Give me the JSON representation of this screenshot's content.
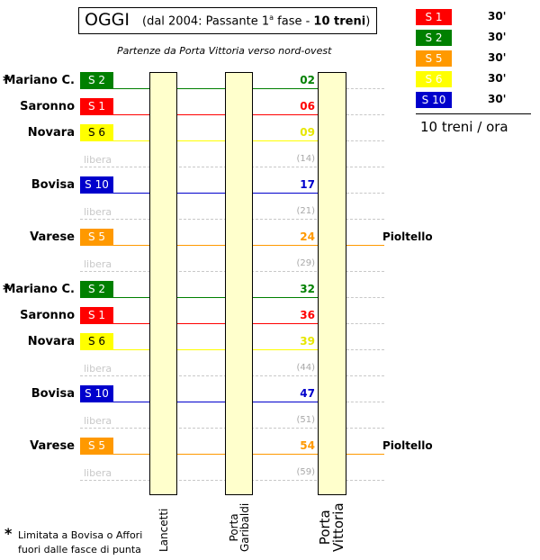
{
  "title": {
    "main": "OGGI",
    "open": "(dal 2004: Passante 1",
    "sup": "a",
    "mid": " fase - ",
    "bold": "10 treni",
    "close": ")"
  },
  "subtitle": "Partenze da Porta Vittoria verso nord-ovest",
  "colors": {
    "S1": "#ff0000",
    "S2": "#008000",
    "S5": "#ff9900",
    "S6": "#ffff00",
    "S10": "#0000cc",
    "free": "#c8c8c8"
  },
  "columns": [
    {
      "line1": "Lancetti",
      "line2": ""
    },
    {
      "line1": "Porta",
      "line2": "Garibaldi"
    },
    {
      "line1": "Porta",
      "line2": "Vittoria"
    }
  ],
  "rows": [
    {
      "station": "Mariano C.",
      "star": "*",
      "line": "S 2",
      "color": "#008000",
      "text_color": "#ffffff",
      "minute": "02"
    },
    {
      "station": "Saronno",
      "star": "",
      "line": "S 1",
      "color": "#ff0000",
      "text_color": "#ffffff",
      "minute": "06"
    },
    {
      "station": "Novara",
      "star": "",
      "line": "S 6",
      "color": "#ffff00",
      "text_color": "#000000",
      "minute": "09"
    },
    {
      "free": true,
      "label": "libera",
      "minute": "(14)"
    },
    {
      "station": "Bovisa",
      "star": "",
      "line": "S 10",
      "color": "#0000cc",
      "text_color": "#ffffff",
      "minute": "17"
    },
    {
      "free": true,
      "label": "libera",
      "minute": "(21)"
    },
    {
      "station": "Varese",
      "star": "",
      "line": "S 5",
      "color": "#ff9900",
      "text_color": "#ffffff",
      "minute": "24",
      "dest": "Pioltello"
    },
    {
      "free": true,
      "label": "libera",
      "minute": "(29)"
    },
    {
      "station": "Mariano C.",
      "star": "*",
      "line": "S 2",
      "color": "#008000",
      "text_color": "#ffffff",
      "minute": "32"
    },
    {
      "station": "Saronno",
      "star": "",
      "line": "S 1",
      "color": "#ff0000",
      "text_color": "#ffffff",
      "minute": "36"
    },
    {
      "station": "Novara",
      "star": "",
      "line": "S 6",
      "color": "#ffff00",
      "text_color": "#000000",
      "minute": "39"
    },
    {
      "free": true,
      "label": "libera",
      "minute": "(44)"
    },
    {
      "station": "Bovisa",
      "star": "",
      "line": "S 10",
      "color": "#0000cc",
      "text_color": "#ffffff",
      "minute": "47"
    },
    {
      "free": true,
      "label": "libera",
      "minute": "(51)"
    },
    {
      "station": "Varese",
      "star": "",
      "line": "S 5",
      "color": "#ff9900",
      "text_color": "#ffffff",
      "minute": "54",
      "dest": "Pioltello"
    },
    {
      "free": true,
      "label": "libera",
      "minute": "(59)"
    }
  ],
  "legend": [
    {
      "line": "S 1",
      "color": "#ff0000",
      "text_color": "#ffffff",
      "freq": "30'"
    },
    {
      "line": "S 2",
      "color": "#008000",
      "text_color": "#ffffff",
      "freq": "30'"
    },
    {
      "line": "S 5",
      "color": "#ff9900",
      "text_color": "#ffffff",
      "freq": "30'"
    },
    {
      "line": "S 6",
      "color": "#ffff00",
      "text_color": "#ffffff",
      "freq": "30'"
    },
    {
      "line": "S 10",
      "color": "#0000cc",
      "text_color": "#ffffff",
      "freq": "30'"
    }
  ],
  "legend_total": "10 treni / ora",
  "footnote": {
    "star": "*",
    "line1": "Limitata a Bovisa o Affori",
    "line2": "fuori dalle fasce di punta"
  }
}
